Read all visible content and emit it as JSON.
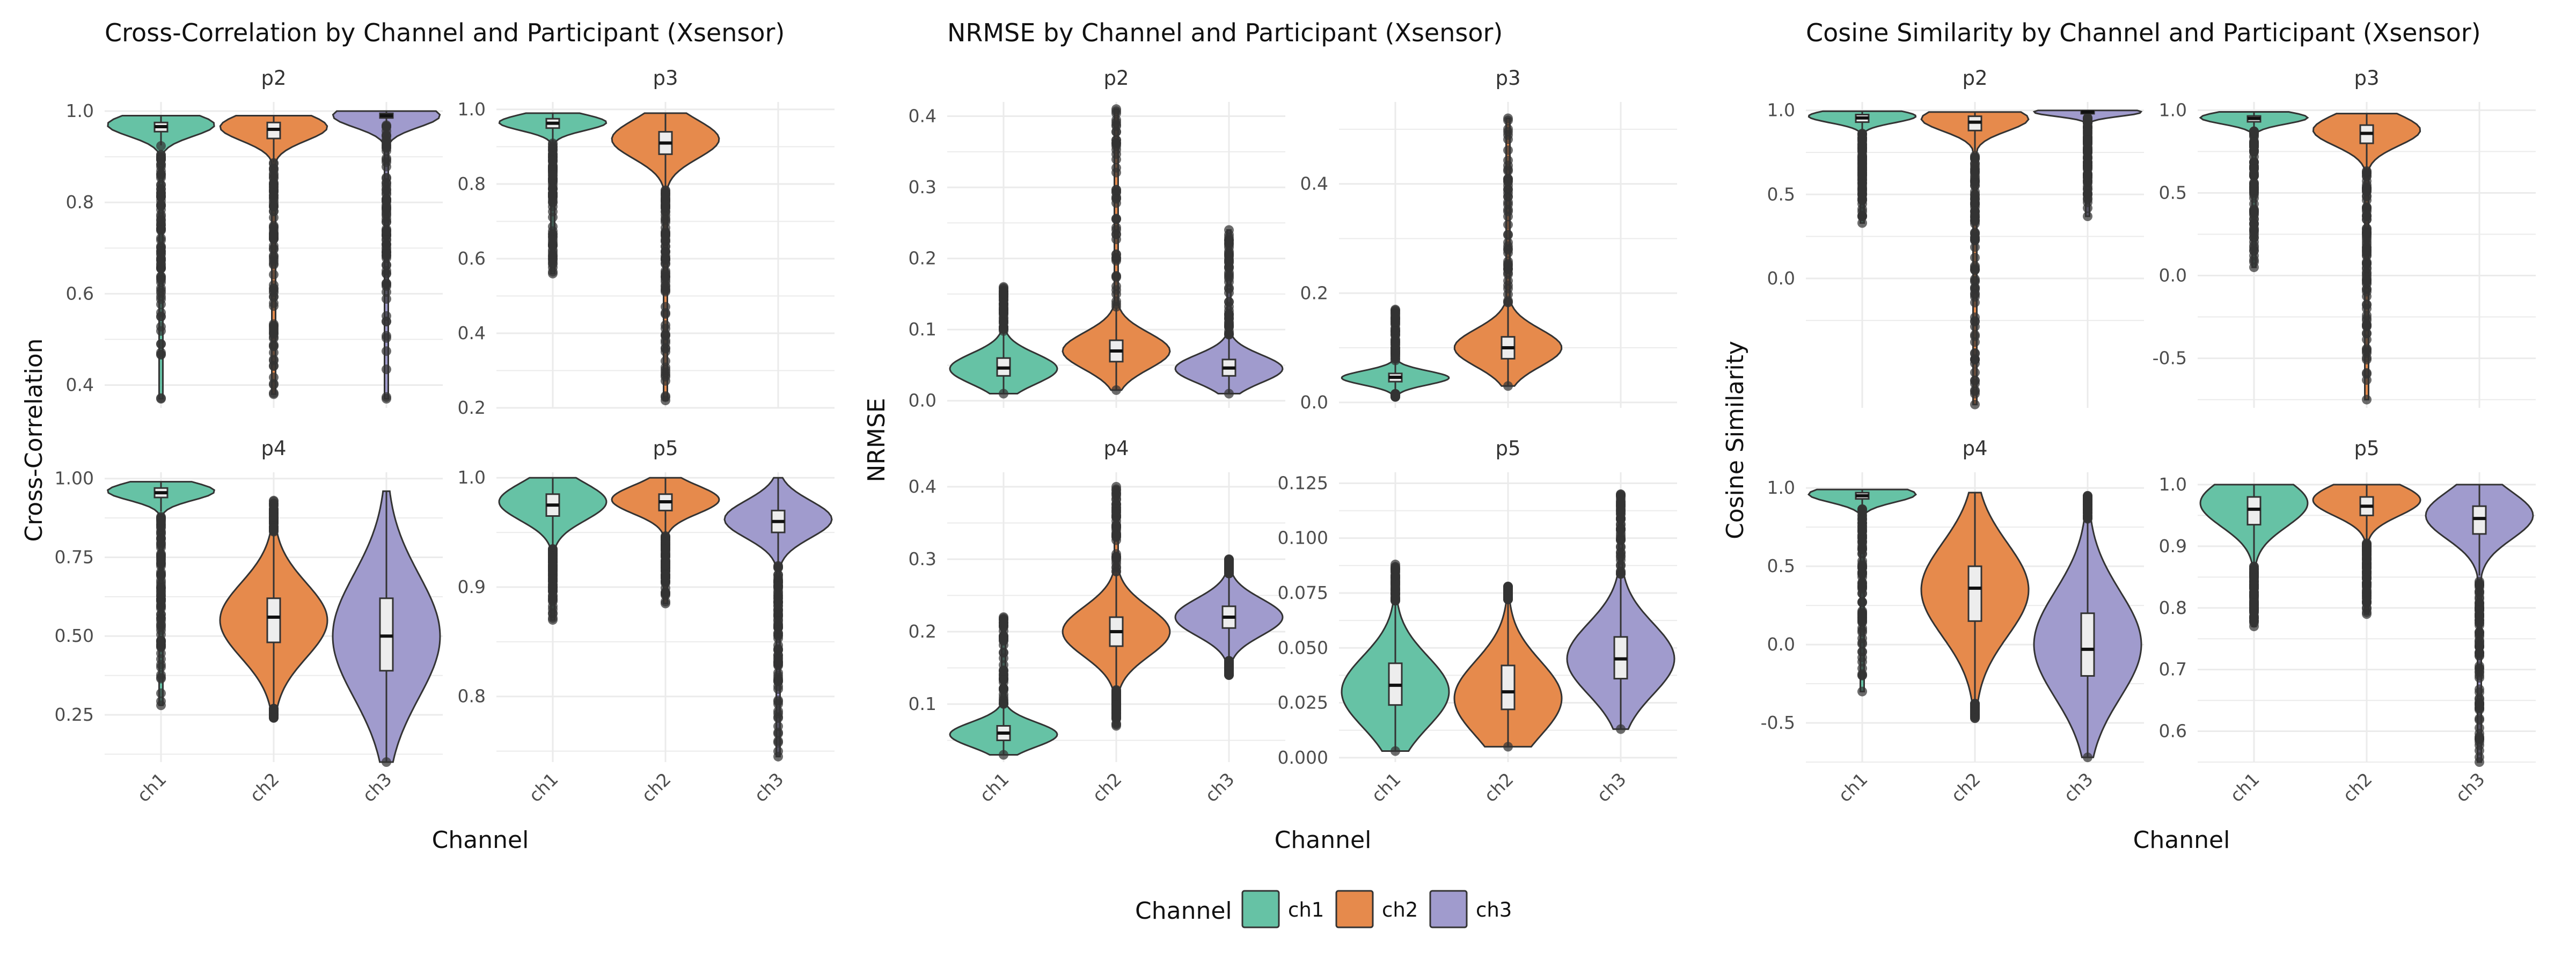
{
  "colors": {
    "ch1": "#66c2a5",
    "ch2": "#e68a4c",
    "ch3": "#a09bcd",
    "outline": "#333333",
    "grid": "#ebebeb",
    "box": "#ededed"
  },
  "legend": {
    "title": "Channel",
    "items": [
      {
        "label": "ch1",
        "color": "#66c2a5"
      },
      {
        "label": "ch2",
        "color": "#e68a4c"
      },
      {
        "label": "ch3",
        "color": "#a09bcd"
      }
    ]
  },
  "chart_data": [
    {
      "type": "violin",
      "title": "Cross-Correlation by Channel and Participant (Xsensor)",
      "xlabel": "Channel",
      "ylabel": "Cross-Correlation",
      "categories": [
        "ch1",
        "ch2",
        "ch3"
      ],
      "panels": [
        {
          "name": "p2",
          "ylim": [
            0.35,
            1.02
          ],
          "yticks": [
            "0.4",
            "0.6",
            "0.8",
            "1.0"
          ],
          "series": [
            {
              "name": "ch1",
              "box": {
                "q1": 0.955,
                "median": 0.966,
                "q3": 0.975
              },
              "range": [
                0.37,
                0.99
              ],
              "density_peak": 0.97
            },
            {
              "name": "ch2",
              "box": {
                "q1": 0.94,
                "median": 0.96,
                "q3": 0.975
              },
              "range": [
                0.38,
                0.99
              ],
              "density_peak": 0.965
            },
            {
              "name": "ch3",
              "box": {
                "q1": 0.985,
                "median": 0.99,
                "q3": 0.995
              },
              "range": [
                0.37,
                1.0
              ],
              "density_peak": 0.99
            }
          ]
        },
        {
          "name": "p3",
          "ylim": [
            0.2,
            1.02
          ],
          "yticks": [
            "0.2",
            "0.4",
            "0.6",
            "0.8",
            "1.0"
          ],
          "series": [
            {
              "name": "ch1",
              "box": {
                "q1": 0.95,
                "median": 0.963,
                "q3": 0.975
              },
              "range": [
                0.56,
                0.99
              ],
              "density_peak": 0.965
            },
            {
              "name": "ch2",
              "box": {
                "q1": 0.88,
                "median": 0.91,
                "q3": 0.94
              },
              "range": [
                0.22,
                0.99
              ],
              "density_peak": 0.92
            }
          ]
        },
        {
          "name": "p4",
          "ylim": [
            0.1,
            1.02
          ],
          "yticks": [
            "0.25",
            "0.50",
            "0.75",
            "1.00"
          ],
          "series": [
            {
              "name": "ch1",
              "box": {
                "q1": 0.94,
                "median": 0.955,
                "q3": 0.97
              },
              "range": [
                0.28,
                0.99
              ],
              "density_peak": 0.96
            },
            {
              "name": "ch2",
              "box": {
                "q1": 0.48,
                "median": 0.56,
                "q3": 0.62
              },
              "range": [
                0.24,
                0.93
              ],
              "density_peak": 0.55
            },
            {
              "name": "ch3",
              "box": {
                "q1": 0.39,
                "median": 0.5,
                "q3": 0.62
              },
              "range": [
                0.1,
                0.96
              ],
              "density_peak": 0.5
            }
          ]
        },
        {
          "name": "p5",
          "ylim": [
            0.74,
            1.005
          ],
          "yticks": [
            "0.8",
            "0.9",
            "1.0"
          ],
          "series": [
            {
              "name": "ch1",
              "box": {
                "q1": 0.965,
                "median": 0.975,
                "q3": 0.985
              },
              "range": [
                0.87,
                1.0
              ],
              "density_peak": 0.978
            },
            {
              "name": "ch2",
              "box": {
                "q1": 0.97,
                "median": 0.978,
                "q3": 0.985
              },
              "range": [
                0.885,
                1.0
              ],
              "density_peak": 0.98
            },
            {
              "name": "ch3",
              "box": {
                "q1": 0.95,
                "median": 0.96,
                "q3": 0.97
              },
              "range": [
                0.745,
                1.0
              ],
              "density_peak": 0.962
            }
          ]
        }
      ]
    },
    {
      "type": "violin",
      "title": "NRMSE by Channel and Participant (Xsensor)",
      "xlabel": "Channel",
      "ylabel": "NRMSE",
      "categories": [
        "ch1",
        "ch2",
        "ch3"
      ],
      "panels": [
        {
          "name": "p2",
          "ylim": [
            -0.01,
            0.42
          ],
          "yticks": [
            "0.0",
            "0.1",
            "0.2",
            "0.3",
            "0.4"
          ],
          "series": [
            {
              "name": "ch1",
              "box": {
                "q1": 0.035,
                "median": 0.046,
                "q3": 0.06
              },
              "range": [
                0.01,
                0.16
              ],
              "density_peak": 0.045
            },
            {
              "name": "ch2",
              "box": {
                "q1": 0.055,
                "median": 0.07,
                "q3": 0.085
              },
              "range": [
                0.015,
                0.41
              ],
              "density_peak": 0.07
            },
            {
              "name": "ch3",
              "box": {
                "q1": 0.035,
                "median": 0.046,
                "q3": 0.058
              },
              "range": [
                0.01,
                0.24
              ],
              "density_peak": 0.045
            }
          ]
        },
        {
          "name": "p3",
          "ylim": [
            -0.01,
            0.55
          ],
          "yticks": [
            "0.0",
            "0.2",
            "0.4"
          ],
          "series": [
            {
              "name": "ch1",
              "box": {
                "q1": 0.038,
                "median": 0.046,
                "q3": 0.053
              },
              "range": [
                0.01,
                0.17
              ],
              "density_peak": 0.045
            },
            {
              "name": "ch2",
              "box": {
                "q1": 0.08,
                "median": 0.1,
                "q3": 0.12
              },
              "range": [
                0.03,
                0.52
              ],
              "density_peak": 0.1
            }
          ]
        },
        {
          "name": "p4",
          "ylim": [
            0.02,
            0.42
          ],
          "yticks": [
            "0.1",
            "0.2",
            "0.3",
            "0.4"
          ],
          "series": [
            {
              "name": "ch1",
              "box": {
                "q1": 0.05,
                "median": 0.06,
                "q3": 0.07
              },
              "range": [
                0.03,
                0.22
              ],
              "density_peak": 0.058
            },
            {
              "name": "ch2",
              "box": {
                "q1": 0.18,
                "median": 0.2,
                "q3": 0.22
              },
              "range": [
                0.07,
                0.4
              ],
              "density_peak": 0.2
            },
            {
              "name": "ch3",
              "box": {
                "q1": 0.205,
                "median": 0.22,
                "q3": 0.235
              },
              "range": [
                0.14,
                0.3
              ],
              "density_peak": 0.22
            }
          ]
        },
        {
          "name": "p5",
          "ylim": [
            -0.002,
            0.13
          ],
          "yticks": [
            "0.000",
            "0.025",
            "0.050",
            "0.075",
            "0.100",
            "0.125"
          ],
          "series": [
            {
              "name": "ch1",
              "box": {
                "q1": 0.024,
                "median": 0.033,
                "q3": 0.043
              },
              "range": [
                0.003,
                0.088
              ],
              "density_peak": 0.03
            },
            {
              "name": "ch2",
              "box": {
                "q1": 0.022,
                "median": 0.03,
                "q3": 0.042
              },
              "range": [
                0.005,
                0.078
              ],
              "density_peak": 0.027
            },
            {
              "name": "ch3",
              "box": {
                "q1": 0.036,
                "median": 0.045,
                "q3": 0.055
              },
              "range": [
                0.013,
                0.12
              ],
              "density_peak": 0.045
            }
          ]
        }
      ]
    },
    {
      "type": "violin",
      "title": "Cosine Similarity by Channel and Participant (Xsensor)",
      "xlabel": "Channel",
      "ylabel": "Cosine Similarity",
      "categories": [
        "ch1",
        "ch2",
        "ch3"
      ],
      "panels": [
        {
          "name": "p2",
          "ylim": [
            -0.77,
            1.05
          ],
          "yticks": [
            "0.0",
            "0.5",
            "1.0"
          ],
          "series": [
            {
              "name": "ch1",
              "box": {
                "q1": 0.93,
                "median": 0.955,
                "q3": 0.975
              },
              "range": [
                0.33,
                0.995
              ],
              "density_peak": 0.965
            },
            {
              "name": "ch2",
              "box": {
                "q1": 0.88,
                "median": 0.93,
                "q3": 0.965
              },
              "range": [
                -0.75,
                0.99
              ],
              "density_peak": 0.95
            },
            {
              "name": "ch3",
              "box": {
                "q1": 0.98,
                "median": 0.99,
                "q3": 0.995
              },
              "range": [
                0.37,
                1.0
              ],
              "density_peak": 0.99
            }
          ]
        },
        {
          "name": "p3",
          "ylim": [
            -0.8,
            1.05
          ],
          "yticks": [
            "-0.5",
            "0.0",
            "0.5",
            "1.0"
          ],
          "series": [
            {
              "name": "ch1",
              "box": {
                "q1": 0.93,
                "median": 0.95,
                "q3": 0.965
              },
              "range": [
                0.05,
                0.99
              ],
              "density_peak": 0.955
            },
            {
              "name": "ch2",
              "box": {
                "q1": 0.8,
                "median": 0.86,
                "q3": 0.91
              },
              "range": [
                -0.75,
                0.98
              ],
              "density_peak": 0.88
            }
          ]
        },
        {
          "name": "p4",
          "ylim": [
            -0.75,
            1.1
          ],
          "yticks": [
            "-0.5",
            "0.0",
            "0.5",
            "1.0"
          ],
          "series": [
            {
              "name": "ch1",
              "box": {
                "q1": 0.93,
                "median": 0.95,
                "q3": 0.97
              },
              "range": [
                -0.3,
                0.99
              ],
              "density_peak": 0.96
            },
            {
              "name": "ch2",
              "box": {
                "q1": 0.15,
                "median": 0.36,
                "q3": 0.5
              },
              "range": [
                -0.47,
                0.97
              ],
              "density_peak": 0.35
            },
            {
              "name": "ch3",
              "box": {
                "q1": -0.2,
                "median": -0.03,
                "q3": 0.2
              },
              "range": [
                -0.72,
                0.95
              ],
              "density_peak": 0.0
            }
          ]
        },
        {
          "name": "p5",
          "ylim": [
            0.55,
            1.02
          ],
          "yticks": [
            "0.6",
            "0.7",
            "0.8",
            "0.9",
            "1.0"
          ],
          "series": [
            {
              "name": "ch1",
              "box": {
                "q1": 0.935,
                "median": 0.96,
                "q3": 0.98
              },
              "range": [
                0.77,
                1.0
              ],
              "density_peak": 0.97
            },
            {
              "name": "ch2",
              "box": {
                "q1": 0.95,
                "median": 0.965,
                "q3": 0.98
              },
              "range": [
                0.79,
                1.0
              ],
              "density_peak": 0.975
            },
            {
              "name": "ch3",
              "box": {
                "q1": 0.92,
                "median": 0.945,
                "q3": 0.965
              },
              "range": [
                0.55,
                1.0
              ],
              "density_peak": 0.95
            }
          ]
        }
      ]
    }
  ]
}
